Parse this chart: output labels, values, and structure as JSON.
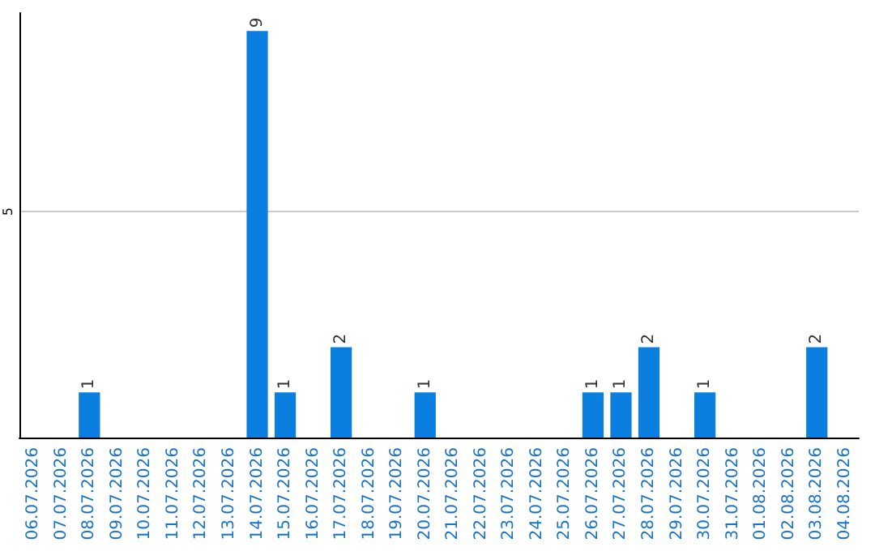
{
  "chart_data": {
    "type": "bar",
    "categories": [
      "06.07.2026",
      "07.07.2026",
      "08.07.2026",
      "09.07.2026",
      "10.07.2026",
      "11.07.2026",
      "12.07.2026",
      "13.07.2026",
      "14.07.2026",
      "15.07.2026",
      "16.07.2026",
      "17.07.2026",
      "18.07.2026",
      "19.07.2026",
      "20.07.2026",
      "21.07.2026",
      "22.07.2026",
      "23.07.2026",
      "24.07.2026",
      "25.07.2026",
      "26.07.2026",
      "27.07.2026",
      "28.07.2026",
      "29.07.2026",
      "30.07.2026",
      "31.07.2026",
      "01.08.2026",
      "02.08.2026",
      "03.08.2026",
      "04.08.2026"
    ],
    "values": [
      0,
      0,
      1,
      0,
      0,
      0,
      0,
      0,
      9,
      1,
      0,
      2,
      0,
      0,
      1,
      0,
      0,
      0,
      0,
      0,
      1,
      1,
      2,
      0,
      1,
      0,
      0,
      0,
      2,
      0
    ],
    "value_labels": [
      null,
      null,
      "1",
      null,
      null,
      null,
      null,
      null,
      "9",
      "1",
      null,
      "2",
      null,
      null,
      "1",
      null,
      null,
      null,
      null,
      null,
      "1",
      "1",
      "2",
      null,
      "1",
      null,
      null,
      null,
      "2",
      null
    ],
    "color": "#0a7fe0",
    "ylim": [
      0,
      9.4
    ],
    "yticks": [
      5
    ],
    "grid": "y"
  }
}
